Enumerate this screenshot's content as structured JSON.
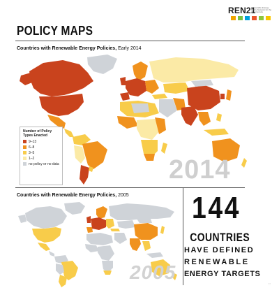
{
  "header": {
    "logo_text": "REN21",
    "logo_subtext": "Renewable Energy Policy Network for the 21st Century",
    "logo_icon_colors": [
      "#f0a500",
      "#7ac143",
      "#00a0dc",
      "#e8542a",
      "#8cc63f",
      "#f7c600"
    ]
  },
  "page_title": "POLICY MAPS",
  "map_2014": {
    "title_bold": "Countries with Renewable Energy Policies,",
    "title_light": " Early 2014",
    "year_watermark": "2014"
  },
  "legend": {
    "title": "Number of Policy Types Enacted",
    "items": [
      {
        "label": "9–13",
        "color": "#c9431d"
      },
      {
        "label": "6–8",
        "color": "#f0921e"
      },
      {
        "label": "3–5",
        "color": "#f8cc4a"
      },
      {
        "label": "1–2",
        "color": "#fbeaa6"
      },
      {
        "label": "no policy or no data",
        "color": "#cfd3d8"
      }
    ]
  },
  "map_2005": {
    "title_bold": "Countries with Renewable Energy Policies,",
    "title_light": " 2005",
    "year_watermark": "2005"
  },
  "stat": {
    "number": "144",
    "line1": "COUNTRIES",
    "line2": "HAVE DEFINED",
    "line3": "RENEWABLE",
    "line4": "ENERGY TARGETS"
  },
  "corner_mark": "::"
}
